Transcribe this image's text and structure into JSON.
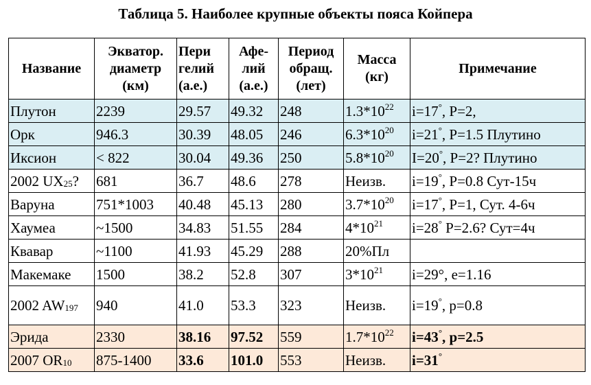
{
  "title": "Таблица 5. Наиболее крупные объекты пояса Койпера",
  "headers": [
    "Название",
    "Экватор. диаметр (км)",
    "Пери гелий (а.е.)",
    "Афе-лий (а.е.)",
    "Период обращ. (лет)",
    "Масса (кг)",
    "Примечание"
  ],
  "colors": {
    "highlight_blue": "#daeef3",
    "highlight_peach": "#fde9d9"
  },
  "rows": [
    {
      "highlight": "blue",
      "cells": [
        {
          "t": "Плутон"
        },
        {
          "t": "2239"
        },
        {
          "t": "29.57"
        },
        {
          "t": "49.32"
        },
        {
          "t": "248"
        },
        {
          "t": "1.3*10",
          "sup": "22"
        },
        {
          "t": "i=17",
          "sup": "°",
          "r": ", P=2,"
        }
      ]
    },
    {
      "highlight": "blue",
      "cells": [
        {
          "t": "Орк"
        },
        {
          "t": "946.3"
        },
        {
          "t": "30.39"
        },
        {
          "t": "48.05"
        },
        {
          "t": "246"
        },
        {
          "t": "6.3*10",
          "sup": "20"
        },
        {
          "t": "i=21",
          "sup": "°",
          "r": ", P=1.5 Плутино"
        }
      ]
    },
    {
      "highlight": "blue",
      "cells": [
        {
          "t": "Иксион"
        },
        {
          "t": "< 822"
        },
        {
          "t": "30.04"
        },
        {
          "t": "49.36"
        },
        {
          "t": "250"
        },
        {
          "t": "5.8*10",
          "sup": "20"
        },
        {
          "t": "I=20",
          "sup": "°",
          "r": ", P=2?  Плутино"
        }
      ]
    },
    {
      "highlight": "",
      "cells": [
        {
          "t": "2002 UX",
          "sub": "25",
          "r": "?"
        },
        {
          "t": "681"
        },
        {
          "t": "36.7"
        },
        {
          "t": "48.6"
        },
        {
          "t": "278"
        },
        {
          "t": "Неизв."
        },
        {
          "t": "i=19",
          "sup": "°",
          "r": ", P=0.8 Сут-15ч"
        }
      ]
    },
    {
      "highlight": "",
      "cells": [
        {
          "t": "Варуна"
        },
        {
          "t": "751*1003"
        },
        {
          "t": "40.48"
        },
        {
          "t": "45.13"
        },
        {
          "t": "280"
        },
        {
          "t": "3.7*10",
          "sup": "20"
        },
        {
          "t": "i=17",
          "sup": "°",
          "r": ", P=1, Сут. 4-6ч"
        }
      ]
    },
    {
      "highlight": "",
      "cells": [
        {
          "t": "Хаумеа"
        },
        {
          "t": "~1500"
        },
        {
          "t": "34.83"
        },
        {
          "t": "51.55"
        },
        {
          "t": "284"
        },
        {
          "t": "4*10",
          "sup": "21"
        },
        {
          "t": "i=28",
          "sup": "°",
          "r": " P=2.6? Сут=4ч"
        }
      ]
    },
    {
      "highlight": "",
      "cells": [
        {
          "t": "Квавар"
        },
        {
          "t": "~1100"
        },
        {
          "t": "41.93"
        },
        {
          "t": "45.29"
        },
        {
          "t": "288"
        },
        {
          "t": "20%Пл"
        },
        {
          "t": ""
        }
      ]
    },
    {
      "highlight": "",
      "cells": [
        {
          "t": "Макемаке"
        },
        {
          "t": "1500"
        },
        {
          "t": "38.2"
        },
        {
          "t": "52.8"
        },
        {
          "t": "307"
        },
        {
          "t": "3*10",
          "sup": "21"
        },
        {
          "t": "i=29°, e=1.16"
        }
      ]
    },
    {
      "highlight": "",
      "tall": true,
      "cells": [
        {
          "t": "2002 AW",
          "sub": "197"
        },
        {
          "t": "940"
        },
        {
          "t": "41.0"
        },
        {
          "t": "53.3"
        },
        {
          "t": "323"
        },
        {
          "t": "Неизв."
        },
        {
          "t": "i=19",
          "sup": "°",
          "r": ", p=0.8"
        }
      ]
    },
    {
      "highlight": "peach",
      "cells": [
        {
          "t": "Эрида"
        },
        {
          "t": "2330"
        },
        {
          "t": "38.16",
          "bold": true
        },
        {
          "t": "97.52",
          "bold": true
        },
        {
          "t": "559"
        },
        {
          "t": "1.7*10",
          "sup": "22"
        },
        {
          "t": "i=43",
          "sup": "°",
          "r": ", p=2.5",
          "bold": true
        }
      ]
    },
    {
      "highlight": "peach",
      "cells": [
        {
          "t": "2007 OR",
          "sub": "10"
        },
        {
          "t": "875-1400"
        },
        {
          "t": "33.6",
          "bold": true
        },
        {
          "t": "101.0",
          "bold": true
        },
        {
          "t": "553"
        },
        {
          "t": "Неизв."
        },
        {
          "t": "i=31",
          "sup": "°",
          "bold": true
        }
      ]
    }
  ]
}
